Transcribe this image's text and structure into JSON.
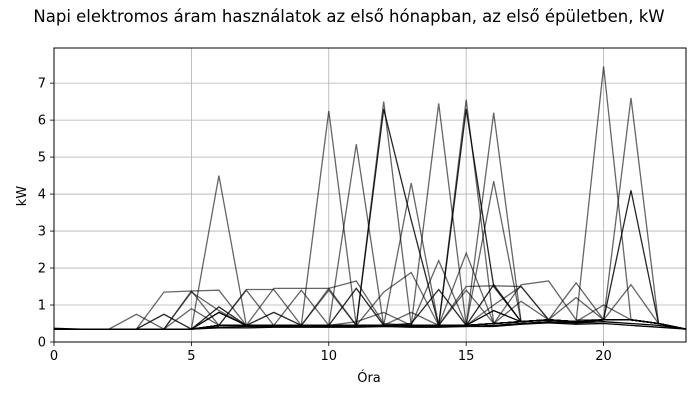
{
  "chart_data": {
    "type": "line",
    "title": "Napi elektromos áram használatok az első hónapban, az első épületben, kW",
    "xlabel": "Óra",
    "ylabel": "kW",
    "xlim": [
      0,
      23
    ],
    "ylim": [
      0,
      7.95
    ],
    "xticks": [
      0,
      5,
      10,
      15,
      20
    ],
    "yticks": [
      0,
      1,
      2,
      3,
      4,
      5,
      6,
      7
    ],
    "grid": true,
    "line_color": "#000000",
    "x": [
      0,
      1,
      2,
      3,
      4,
      5,
      6,
      7,
      8,
      9,
      10,
      11,
      12,
      13,
      14,
      15,
      16,
      17,
      18,
      19,
      20,
      21,
      22,
      23
    ],
    "series": [
      {
        "values": [
          0.35,
          0.35,
          0.35,
          0.35,
          0.35,
          0.35,
          4.5,
          0.45,
          0.45,
          0.45,
          0.45,
          0.45,
          0.45,
          0.45,
          0.45,
          0.45,
          0.5,
          0.55,
          0.6,
          0.55,
          0.6,
          0.6,
          0.5,
          0.35
        ],
        "opacity": 0.6
      },
      {
        "values": [
          0.35,
          0.35,
          0.35,
          0.35,
          0.35,
          0.35,
          0.45,
          0.45,
          0.45,
          0.45,
          6.25,
          0.45,
          0.45,
          0.45,
          0.45,
          0.45,
          0.5,
          0.55,
          0.6,
          0.55,
          0.6,
          0.6,
          0.5,
          0.35
        ],
        "opacity": 0.6
      },
      {
        "values": [
          0.35,
          0.35,
          0.35,
          0.35,
          0.35,
          0.35,
          0.45,
          0.45,
          0.45,
          0.45,
          0.45,
          5.35,
          0.45,
          0.45,
          0.45,
          0.45,
          0.5,
          0.55,
          0.6,
          0.55,
          0.6,
          0.6,
          0.5,
          0.35
        ],
        "opacity": 0.6
      },
      {
        "values": [
          0.35,
          0.35,
          0.35,
          0.35,
          0.35,
          0.35,
          0.45,
          0.45,
          0.45,
          0.45,
          0.45,
          0.45,
          6.5,
          0.45,
          0.45,
          0.45,
          0.5,
          0.55,
          0.6,
          0.55,
          0.6,
          0.6,
          0.5,
          0.35
        ],
        "opacity": 0.6
      },
      {
        "values": [
          0.35,
          0.35,
          0.35,
          0.35,
          0.35,
          0.35,
          0.45,
          0.45,
          0.45,
          0.45,
          0.45,
          0.45,
          6.3,
          3.3,
          0.45,
          0.45,
          0.5,
          0.55,
          0.6,
          0.55,
          0.6,
          0.6,
          0.5,
          0.35
        ],
        "opacity": 0.85
      },
      {
        "values": [
          0.35,
          0.35,
          0.35,
          0.35,
          0.35,
          0.35,
          0.45,
          0.45,
          0.45,
          0.45,
          0.45,
          0.45,
          0.45,
          4.3,
          0.45,
          0.45,
          0.5,
          0.55,
          0.6,
          0.55,
          0.6,
          0.6,
          0.5,
          0.35
        ],
        "opacity": 0.6
      },
      {
        "values": [
          0.35,
          0.35,
          0.35,
          0.35,
          0.35,
          0.35,
          0.45,
          0.45,
          0.45,
          0.45,
          0.45,
          0.45,
          0.45,
          0.45,
          6.45,
          0.45,
          0.5,
          0.55,
          0.6,
          0.55,
          0.6,
          0.6,
          0.5,
          0.35
        ],
        "opacity": 0.6
      },
      {
        "values": [
          0.35,
          0.35,
          0.35,
          0.35,
          0.35,
          0.35,
          0.45,
          0.45,
          0.45,
          0.45,
          0.45,
          0.45,
          0.45,
          0.45,
          0.45,
          6.55,
          0.5,
          0.55,
          0.6,
          0.55,
          0.6,
          0.6,
          0.5,
          0.35
        ],
        "opacity": 0.6
      },
      {
        "values": [
          0.35,
          0.35,
          0.35,
          0.35,
          0.35,
          0.35,
          0.45,
          0.45,
          0.45,
          0.45,
          0.45,
          0.45,
          0.45,
          0.45,
          0.45,
          6.3,
          1.5,
          0.55,
          0.6,
          0.55,
          0.6,
          0.6,
          0.5,
          0.35
        ],
        "opacity": 0.85
      },
      {
        "values": [
          0.35,
          0.35,
          0.35,
          0.35,
          0.35,
          0.35,
          0.45,
          0.45,
          0.45,
          0.45,
          0.45,
          0.45,
          0.45,
          0.45,
          0.45,
          0.45,
          6.2,
          0.55,
          0.6,
          0.55,
          0.6,
          0.6,
          0.5,
          0.35
        ],
        "opacity": 0.6
      },
      {
        "values": [
          0.35,
          0.35,
          0.35,
          0.35,
          0.35,
          0.35,
          0.45,
          0.45,
          0.45,
          0.45,
          0.45,
          0.45,
          0.45,
          0.45,
          0.45,
          0.45,
          4.35,
          0.55,
          0.6,
          0.55,
          0.6,
          0.6,
          0.5,
          0.35
        ],
        "opacity": 0.6
      },
      {
        "values": [
          0.35,
          0.35,
          0.35,
          0.35,
          0.35,
          0.35,
          0.45,
          0.45,
          0.45,
          0.45,
          0.45,
          0.45,
          0.45,
          0.45,
          0.45,
          0.45,
          0.5,
          0.55,
          0.6,
          0.55,
          7.45,
          0.6,
          0.5,
          0.35
        ],
        "opacity": 0.6
      },
      {
        "values": [
          0.35,
          0.35,
          0.35,
          0.35,
          0.35,
          0.35,
          0.45,
          0.45,
          0.45,
          0.45,
          0.45,
          0.45,
          0.45,
          0.45,
          0.45,
          0.45,
          0.5,
          0.55,
          0.6,
          0.55,
          0.6,
          6.6,
          0.5,
          0.35
        ],
        "opacity": 0.6
      },
      {
        "values": [
          0.35,
          0.35,
          0.35,
          0.35,
          0.35,
          0.35,
          0.45,
          0.45,
          0.45,
          0.45,
          0.45,
          0.45,
          0.45,
          0.45,
          0.45,
          0.45,
          0.5,
          0.55,
          0.6,
          0.55,
          0.6,
          4.1,
          0.5,
          0.35
        ],
        "opacity": 0.85
      },
      {
        "values": [
          0.35,
          0.35,
          0.35,
          0.75,
          0.35,
          1.38,
          1.4,
          0.45,
          1.45,
          1.45,
          1.45,
          1.65,
          0.5,
          0.45,
          0.45,
          2.4,
          0.5,
          1.55,
          1.65,
          0.6,
          0.6,
          0.6,
          0.5,
          0.35
        ],
        "opacity": 0.6
      },
      {
        "values": [
          0.35,
          0.35,
          0.35,
          0.35,
          1.35,
          1.38,
          0.45,
          1.42,
          1.42,
          0.45,
          1.4,
          0.45,
          1.35,
          1.88,
          0.45,
          1.5,
          1.52,
          1.5,
          0.6,
          1.6,
          0.6,
          1.55,
          0.5,
          0.35
        ],
        "opacity": 0.6
      },
      {
        "values": [
          0.35,
          0.35,
          0.35,
          0.35,
          0.75,
          0.35,
          0.95,
          0.45,
          0.8,
          0.45,
          0.45,
          1.45,
          0.45,
          0.5,
          1.42,
          0.45,
          1.55,
          0.55,
          0.6,
          0.55,
          0.6,
          0.6,
          0.5,
          0.35
        ],
        "opacity": 0.85
      },
      {
        "values": [
          0.35,
          0.35,
          0.35,
          0.35,
          0.35,
          1.35,
          0.85,
          0.45,
          0.45,
          1.4,
          0.45,
          0.55,
          0.8,
          0.45,
          2.2,
          0.45,
          1.0,
          1.5,
          0.6,
          1.2,
          0.6,
          0.6,
          0.5,
          0.35
        ],
        "opacity": 0.6
      },
      {
        "values": [
          0.35,
          0.35,
          0.35,
          0.35,
          0.35,
          0.9,
          0.45,
          1.4,
          0.45,
          0.45,
          1.45,
          0.45,
          0.45,
          0.8,
          0.45,
          1.4,
          0.5,
          1.1,
          0.6,
          0.55,
          1.0,
          0.6,
          0.5,
          0.35
        ],
        "opacity": 0.6
      },
      {
        "values": [
          0.35,
          0.35,
          0.35,
          0.35,
          0.35,
          0.35,
          0.8,
          0.45,
          0.45,
          0.45,
          0.45,
          0.45,
          0.45,
          0.45,
          0.45,
          0.45,
          0.85,
          0.55,
          0.6,
          0.55,
          0.6,
          0.6,
          0.5,
          0.35
        ],
        "opacity": 1.0
      },
      {
        "values": [
          0.37,
          0.35,
          0.35,
          0.35,
          0.35,
          0.35,
          0.4,
          0.42,
          0.42,
          0.42,
          0.42,
          0.42,
          0.42,
          0.42,
          0.42,
          0.42,
          0.45,
          0.5,
          0.55,
          0.52,
          0.55,
          0.5,
          0.45,
          0.35
        ],
        "opacity": 1.0
      },
      {
        "values": [
          0.35,
          0.35,
          0.35,
          0.35,
          0.35,
          0.35,
          0.38,
          0.38,
          0.4,
          0.4,
          0.4,
          0.4,
          0.42,
          0.4,
          0.4,
          0.42,
          0.42,
          0.48,
          0.52,
          0.48,
          0.5,
          0.45,
          0.4,
          0.35
        ],
        "opacity": 1.0
      }
    ]
  }
}
